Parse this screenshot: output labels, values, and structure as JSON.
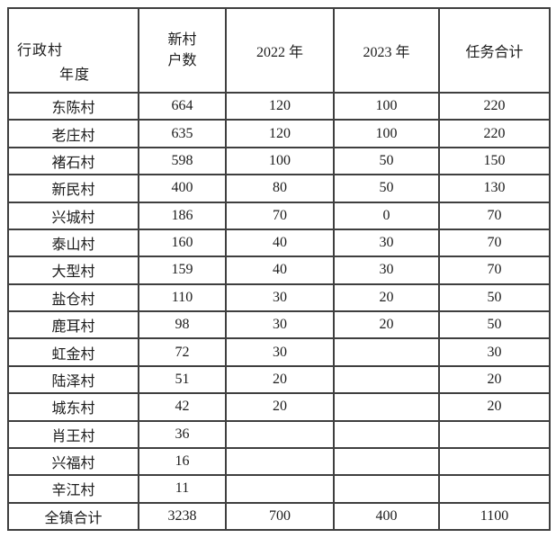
{
  "colors": {
    "background": "#ffffff",
    "border": "#3f3f3f",
    "text": "#1c1c1c"
  },
  "table": {
    "header": {
      "corner_top": "行政村",
      "corner_bottom": "年度",
      "households_line1": "新村",
      "households_line2": "户数",
      "col_2022": "2022 年",
      "col_2023": "2023 年",
      "col_total": "任务合计"
    },
    "rows": [
      {
        "village": "东陈村",
        "households": "664",
        "y2022": "120",
        "y2023": "100",
        "total": "220"
      },
      {
        "village": "老庄村",
        "households": "635",
        "y2022": "120",
        "y2023": "100",
        "total": "220"
      },
      {
        "village": "褚石村",
        "households": "598",
        "y2022": "100",
        "y2023": "50",
        "total": "150"
      },
      {
        "village": "新民村",
        "households": "400",
        "y2022": "80",
        "y2023": "50",
        "total": "130"
      },
      {
        "village": "兴城村",
        "households": "186",
        "y2022": "70",
        "y2023": "0",
        "total": "70"
      },
      {
        "village": "泰山村",
        "households": "160",
        "y2022": "40",
        "y2023": "30",
        "total": "70"
      },
      {
        "village": "大型村",
        "households": "159",
        "y2022": "40",
        "y2023": "30",
        "total": "70"
      },
      {
        "village": "盐仓村",
        "households": "110",
        "y2022": "30",
        "y2023": "20",
        "total": "50"
      },
      {
        "village": "鹿耳村",
        "households": "98",
        "y2022": "30",
        "y2023": "20",
        "total": "50"
      },
      {
        "village": "虹金村",
        "households": "72",
        "y2022": "30",
        "y2023": "",
        "total": "30"
      },
      {
        "village": "陆泽村",
        "households": "51",
        "y2022": "20",
        "y2023": "",
        "total": "20"
      },
      {
        "village": "城东村",
        "households": "42",
        "y2022": "20",
        "y2023": "",
        "total": "20"
      },
      {
        "village": "肖王村",
        "households": "36",
        "y2022": "",
        "y2023": "",
        "total": ""
      },
      {
        "village": "兴福村",
        "households": "16",
        "y2022": "",
        "y2023": "",
        "total": ""
      },
      {
        "village": "辛江村",
        "households": "11",
        "y2022": "",
        "y2023": "",
        "total": ""
      }
    ],
    "total_row": {
      "village": "全镇合计",
      "households": "3238",
      "y2022": "700",
      "y2023": "400",
      "total": "1100"
    }
  }
}
